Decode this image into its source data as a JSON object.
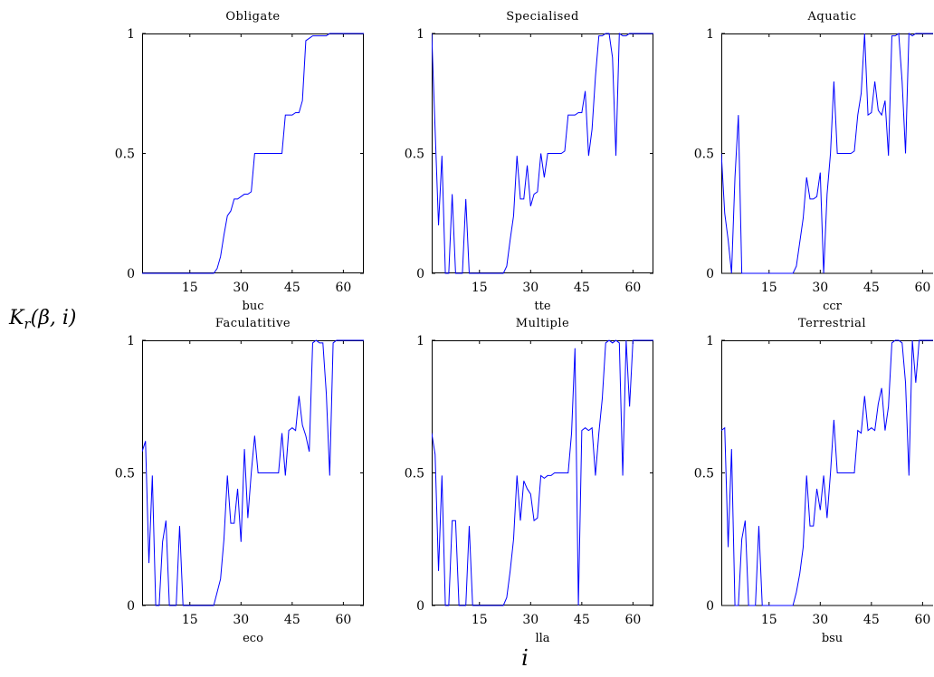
{
  "figure": {
    "ylabel": "K_r(β, i)",
    "xlabel": "i"
  },
  "chart_data": [
    {
      "type": "line",
      "title": "Obligate",
      "xlabel": "buc",
      "xticks": [
        15,
        30,
        45,
        60
      ],
      "yticks": [
        0,
        0.5,
        1
      ],
      "yticklabels": [
        "0",
        "0.5",
        "1"
      ],
      "xlim": [
        1,
        66
      ],
      "ylim": [
        0,
        1
      ],
      "color": "#0000ff",
      "x": [
        1,
        22,
        23,
        24,
        25,
        26,
        27,
        28,
        29,
        30,
        31,
        32,
        33,
        34,
        35,
        36,
        37,
        38,
        40,
        42,
        43,
        44,
        45,
        46,
        47,
        48,
        49,
        50,
        51,
        52,
        53,
        54,
        55,
        56,
        57,
        58,
        59,
        60,
        61,
        62,
        63,
        64,
        65,
        66
      ],
      "y": [
        0,
        0,
        0.02,
        0.07,
        0.16,
        0.24,
        0.26,
        0.31,
        0.31,
        0.32,
        0.33,
        0.33,
        0.34,
        0.5,
        0.5,
        0.5,
        0.5,
        0.5,
        0.5,
        0.5,
        0.66,
        0.66,
        0.66,
        0.67,
        0.67,
        0.72,
        0.97,
        0.98,
        0.99,
        0.99,
        0.99,
        0.99,
        0.99,
        1,
        1,
        1,
        1,
        1,
        1,
        1,
        1,
        1,
        1,
        1
      ]
    },
    {
      "type": "line",
      "title": "Specialised",
      "xlabel": "tte",
      "xticks": [
        15,
        30,
        45,
        60
      ],
      "yticks": [
        0,
        0.5,
        1
      ],
      "yticklabels": [
        "0",
        "0.5",
        "1"
      ],
      "xlim": [
        1,
        66
      ],
      "ylim": [
        0,
        1
      ],
      "color": "#0000ff",
      "x": [
        1,
        2,
        3,
        4,
        5,
        6,
        7,
        8,
        9,
        10,
        11,
        12,
        13,
        14,
        15,
        16,
        17,
        18,
        19,
        20,
        21,
        22,
        23,
        24,
        25,
        26,
        27,
        28,
        29,
        30,
        31,
        32,
        33,
        34,
        35,
        36,
        37,
        38,
        39,
        40,
        41,
        42,
        43,
        44,
        45,
        46,
        47,
        48,
        49,
        50,
        51,
        52,
        53,
        54,
        55,
        56,
        57,
        58,
        59,
        60,
        61,
        62,
        63,
        64,
        65,
        66
      ],
      "y": [
        1,
        0.6,
        0.2,
        0.49,
        0,
        0,
        0.33,
        0,
        0,
        0,
        0.31,
        0,
        0,
        0,
        0,
        0,
        0,
        0,
        0,
        0,
        0,
        0,
        0.03,
        0.14,
        0.24,
        0.49,
        0.31,
        0.31,
        0.45,
        0.28,
        0.33,
        0.34,
        0.5,
        0.4,
        0.5,
        0.5,
        0.5,
        0.5,
        0.5,
        0.51,
        0.66,
        0.66,
        0.66,
        0.67,
        0.67,
        0.76,
        0.49,
        0.6,
        0.82,
        0.99,
        0.99,
        1,
        1,
        0.9,
        0.49,
        1,
        0.99,
        0.99,
        1,
        1,
        1,
        1,
        1,
        1,
        1,
        1
      ]
    },
    {
      "type": "line",
      "title": "Aquatic",
      "xlabel": "ccr",
      "xticks": [
        15,
        30,
        45,
        60
      ],
      "yticks": [
        0,
        0.5,
        1
      ],
      "yticklabels": [
        "0",
        "0.5",
        "1"
      ],
      "xlim": [
        1,
        66
      ],
      "ylim": [
        0,
        1
      ],
      "color": "#0000ff",
      "x": [
        1,
        2,
        3,
        4,
        5,
        6,
        7,
        8,
        9,
        10,
        11,
        12,
        13,
        14,
        15,
        16,
        17,
        18,
        19,
        20,
        21,
        22,
        23,
        24,
        25,
        26,
        27,
        28,
        29,
        30,
        31,
        32,
        33,
        34,
        35,
        36,
        37,
        38,
        39,
        40,
        41,
        42,
        43,
        44,
        45,
        46,
        47,
        48,
        49,
        50,
        51,
        52,
        53,
        54,
        55,
        56,
        57,
        58,
        59,
        60,
        61,
        62,
        63,
        64,
        65,
        66
      ],
      "y": [
        0.5,
        0.25,
        0.14,
        0,
        0.4,
        0.66,
        0,
        0,
        0,
        0,
        0,
        0,
        0,
        0,
        0,
        0,
        0,
        0,
        0,
        0,
        0,
        0,
        0.03,
        0.13,
        0.23,
        0.4,
        0.31,
        0.31,
        0.32,
        0.42,
        0,
        0.33,
        0.5,
        0.8,
        0.5,
        0.5,
        0.5,
        0.5,
        0.5,
        0.51,
        0.66,
        0.75,
        1,
        0.66,
        0.67,
        0.8,
        0.68,
        0.66,
        0.72,
        0.49,
        0.99,
        0.99,
        1,
        0.8,
        0.5,
        1,
        0.99,
        1,
        1,
        1,
        1,
        1,
        1,
        1,
        1,
        1
      ]
    },
    {
      "type": "line",
      "title": "Faculatitive",
      "xlabel": "eco",
      "xticks": [
        15,
        30,
        45,
        60
      ],
      "yticks": [
        0,
        0.5,
        1
      ],
      "yticklabels": [
        "0",
        "0.5",
        "1"
      ],
      "xlim": [
        1,
        66
      ],
      "ylim": [
        0,
        1
      ],
      "color": "#0000ff",
      "x": [
        1,
        2,
        3,
        4,
        5,
        6,
        7,
        8,
        9,
        10,
        11,
        12,
        13,
        14,
        15,
        16,
        17,
        18,
        19,
        20,
        21,
        22,
        23,
        24,
        25,
        26,
        27,
        28,
        29,
        30,
        31,
        32,
        33,
        34,
        35,
        36,
        37,
        38,
        39,
        40,
        41,
        42,
        43,
        44,
        45,
        46,
        47,
        48,
        49,
        50,
        51,
        52,
        53,
        54,
        55,
        56,
        57,
        58,
        59,
        60,
        61,
        62,
        63,
        64,
        65,
        66
      ],
      "y": [
        0.58,
        0.62,
        0.16,
        0.49,
        0,
        0,
        0.24,
        0.32,
        0,
        0,
        0,
        0.3,
        0,
        0,
        0,
        0,
        0,
        0,
        0,
        0,
        0,
        0,
        0.05,
        0.1,
        0.25,
        0.49,
        0.31,
        0.31,
        0.44,
        0.24,
        0.59,
        0.33,
        0.5,
        0.64,
        0.5,
        0.5,
        0.5,
        0.5,
        0.5,
        0.5,
        0.5,
        0.65,
        0.49,
        0.66,
        0.67,
        0.66,
        0.79,
        0.68,
        0.64,
        0.58,
        0.99,
        1,
        0.99,
        0.99,
        0.8,
        0.49,
        0.99,
        1,
        1,
        1,
        1,
        1,
        1,
        1,
        1,
        1
      ]
    },
    {
      "type": "line",
      "title": "Multiple",
      "xlabel": "lla",
      "xticks": [
        15,
        30,
        45,
        60
      ],
      "yticks": [
        0,
        0.5,
        1
      ],
      "yticklabels": [
        "0",
        "0.5",
        "1"
      ],
      "xlim": [
        1,
        66
      ],
      "ylim": [
        0,
        1
      ],
      "color": "#0000ff",
      "x": [
        1,
        2,
        3,
        4,
        5,
        6,
        7,
        8,
        9,
        10,
        11,
        12,
        13,
        14,
        15,
        16,
        17,
        18,
        19,
        20,
        21,
        22,
        23,
        24,
        25,
        26,
        27,
        28,
        29,
        30,
        31,
        32,
        33,
        34,
        35,
        36,
        37,
        38,
        39,
        40,
        41,
        42,
        43,
        44,
        45,
        46,
        47,
        48,
        49,
        50,
        51,
        52,
        53,
        54,
        55,
        56,
        57,
        58,
        59,
        60,
        61,
        62,
        63,
        64,
        65,
        66
      ],
      "y": [
        0.65,
        0.57,
        0.13,
        0.49,
        0,
        0,
        0.32,
        0.32,
        0,
        0,
        0,
        0.3,
        0,
        0,
        0,
        0,
        0,
        0,
        0,
        0,
        0,
        0,
        0.03,
        0.13,
        0.25,
        0.49,
        0.32,
        0.47,
        0.44,
        0.42,
        0.32,
        0.33,
        0.49,
        0.48,
        0.49,
        0.49,
        0.5,
        0.5,
        0.5,
        0.5,
        0.5,
        0.65,
        0.97,
        0,
        0.66,
        0.67,
        0.66,
        0.67,
        0.49,
        0.65,
        0.78,
        0.99,
        1,
        0.99,
        1,
        0.99,
        0.49,
        1,
        0.75,
        1,
        1,
        1,
        1,
        1,
        1,
        1
      ]
    },
    {
      "type": "line",
      "title": "Terrestrial",
      "xlabel": "bsu",
      "xticks": [
        15,
        30,
        45,
        60
      ],
      "yticks": [
        0,
        0.5,
        1
      ],
      "yticklabels": [
        "0",
        "0.5",
        "1"
      ],
      "xlim": [
        1,
        66
      ],
      "ylim": [
        0,
        1
      ],
      "color": "#0000ff",
      "x": [
        1,
        2,
        3,
        4,
        5,
        6,
        7,
        8,
        9,
        10,
        11,
        12,
        13,
        14,
        15,
        16,
        17,
        18,
        19,
        20,
        21,
        22,
        23,
        24,
        25,
        26,
        27,
        28,
        29,
        30,
        31,
        32,
        33,
        34,
        35,
        36,
        37,
        38,
        39,
        40,
        41,
        42,
        43,
        44,
        45,
        46,
        47,
        48,
        49,
        50,
        51,
        52,
        53,
        54,
        55,
        56,
        57,
        58,
        59,
        60,
        61,
        62,
        63,
        64,
        65,
        66
      ],
      "y": [
        0.66,
        0.67,
        0.22,
        0.59,
        0,
        0,
        0.25,
        0.32,
        0,
        0,
        0,
        0.3,
        0,
        0,
        0,
        0,
        0,
        0,
        0,
        0,
        0,
        0,
        0.05,
        0.12,
        0.22,
        0.49,
        0.3,
        0.3,
        0.44,
        0.36,
        0.49,
        0.33,
        0.5,
        0.7,
        0.5,
        0.5,
        0.5,
        0.5,
        0.5,
        0.5,
        0.66,
        0.65,
        0.79,
        0.66,
        0.67,
        0.66,
        0.76,
        0.82,
        0.66,
        0.75,
        0.99,
        1,
        1,
        0.99,
        0.84,
        0.49,
        1,
        0.84,
        1,
        1,
        1,
        1,
        1,
        1,
        1,
        1
      ]
    }
  ]
}
